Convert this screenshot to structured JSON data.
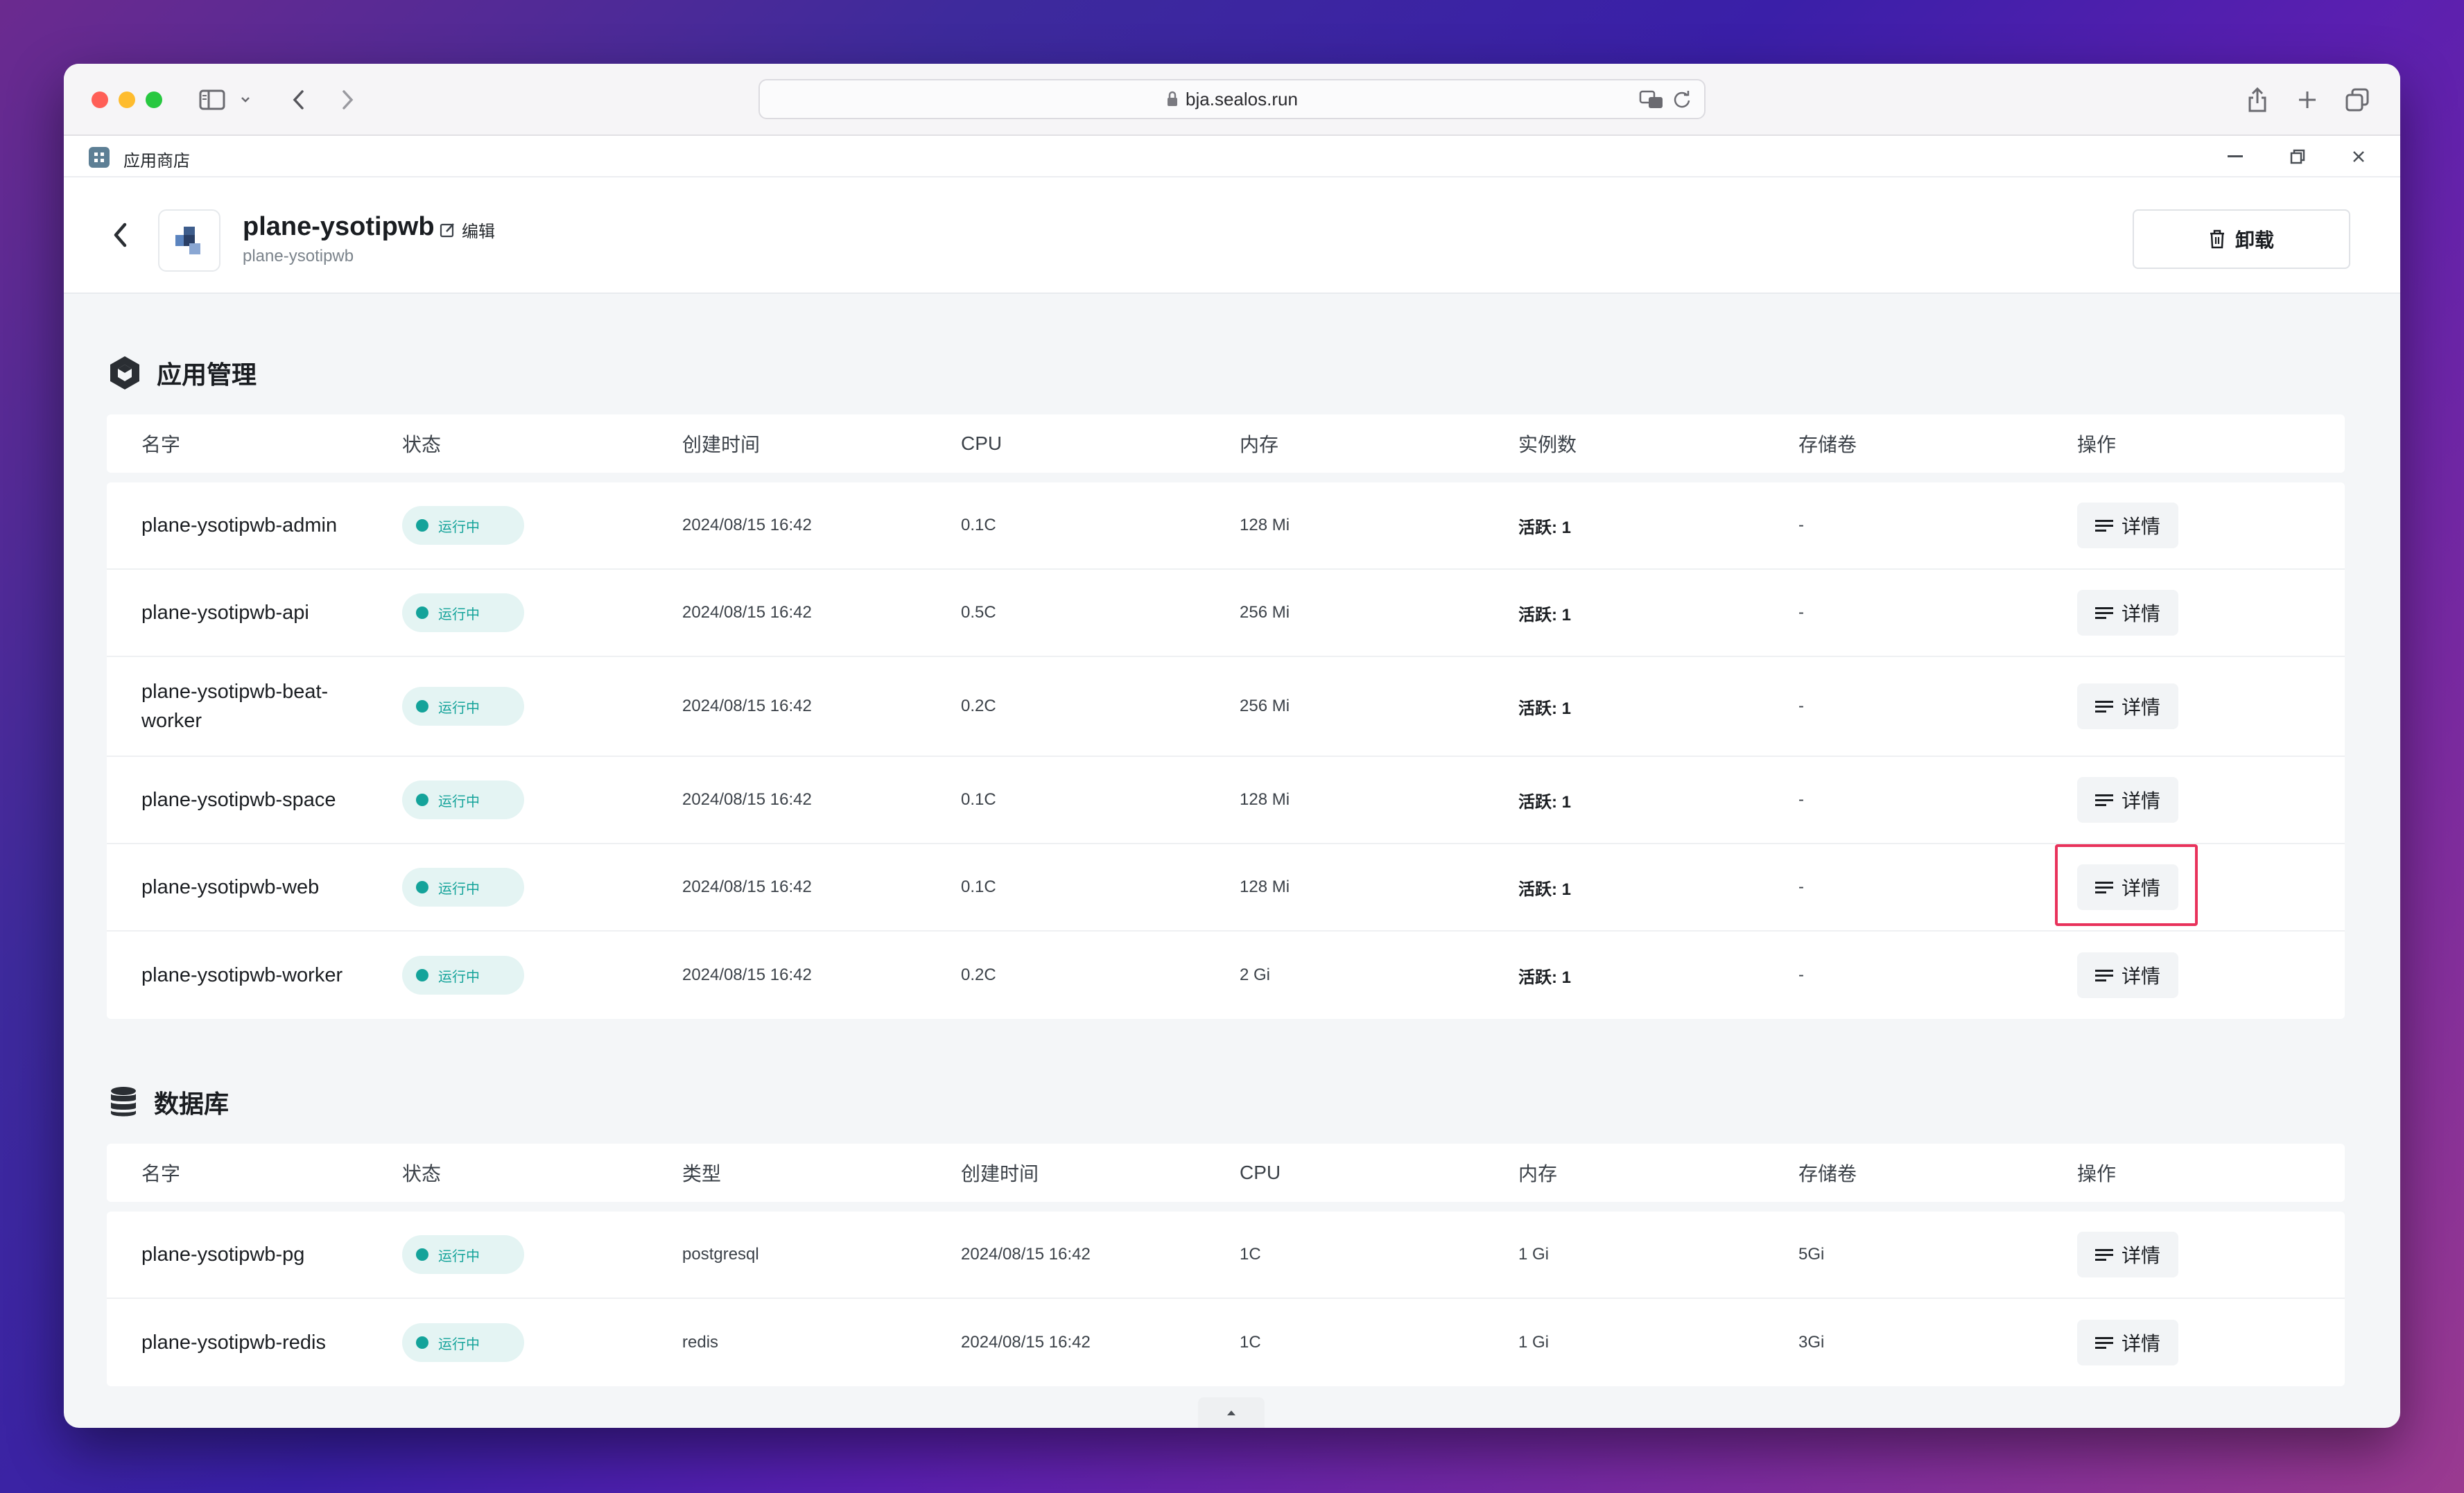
{
  "browser": {
    "url": "bja.sealos.run"
  },
  "app_bar": {
    "title": "应用商店",
    "minimize": "—",
    "close": "✕"
  },
  "header": {
    "app_name": "plane-ysotipwb",
    "app_sub": "plane-ysotipwb",
    "edit_label": "编辑",
    "uninstall_label": "卸载"
  },
  "app_section": {
    "title": "应用管理",
    "columns": [
      "名字",
      "状态",
      "创建时间",
      "CPU",
      "内存",
      "实例数",
      "存储卷",
      "操作"
    ],
    "rows": [
      {
        "name": "plane-ysotipwb-admin",
        "status": "运行中",
        "created": "2024/08/15 16:42",
        "cpu": "0.1C",
        "memory": "128 Mi",
        "replicas": "活跃: 1",
        "storage": "-",
        "action": "详情"
      },
      {
        "name": "plane-ysotipwb-api",
        "status": "运行中",
        "created": "2024/08/15 16:42",
        "cpu": "0.5C",
        "memory": "256 Mi",
        "replicas": "活跃: 1",
        "storage": "-",
        "action": "详情"
      },
      {
        "name": "plane-ysotipwb-beat-worker",
        "status": "运行中",
        "created": "2024/08/15 16:42",
        "cpu": "0.2C",
        "memory": "256 Mi",
        "replicas": "活跃: 1",
        "storage": "-",
        "action": "详情"
      },
      {
        "name": "plane-ysotipwb-space",
        "status": "运行中",
        "created": "2024/08/15 16:42",
        "cpu": "0.1C",
        "memory": "128 Mi",
        "replicas": "活跃: 1",
        "storage": "-",
        "action": "详情"
      },
      {
        "name": "plane-ysotipwb-web",
        "status": "运行中",
        "created": "2024/08/15 16:42",
        "cpu": "0.1C",
        "memory": "128 Mi",
        "replicas": "活跃: 1",
        "storage": "-",
        "action": "详情"
      },
      {
        "name": "plane-ysotipwb-worker",
        "status": "运行中",
        "created": "2024/08/15 16:42",
        "cpu": "0.2C",
        "memory": "2 Gi",
        "replicas": "活跃: 1",
        "storage": "-",
        "action": "详情"
      }
    ]
  },
  "db_section": {
    "title": "数据库",
    "columns": [
      "名字",
      "状态",
      "类型",
      "创建时间",
      "CPU",
      "内存",
      "存储卷",
      "操作"
    ],
    "rows": [
      {
        "name": "plane-ysotipwb-pg",
        "status": "运行中",
        "type": "postgresql",
        "created": "2024/08/15 16:42",
        "cpu": "1C",
        "memory": "1 Gi",
        "storage": "5Gi",
        "action": "详情"
      },
      {
        "name": "plane-ysotipwb-redis",
        "status": "运行中",
        "type": "redis",
        "created": "2024/08/15 16:42",
        "cpu": "1C",
        "memory": "1 Gi",
        "storage": "3Gi",
        "action": "详情"
      }
    ]
  },
  "colors": {
    "accent_status": "#14a39a",
    "highlight": "#e8325b"
  }
}
